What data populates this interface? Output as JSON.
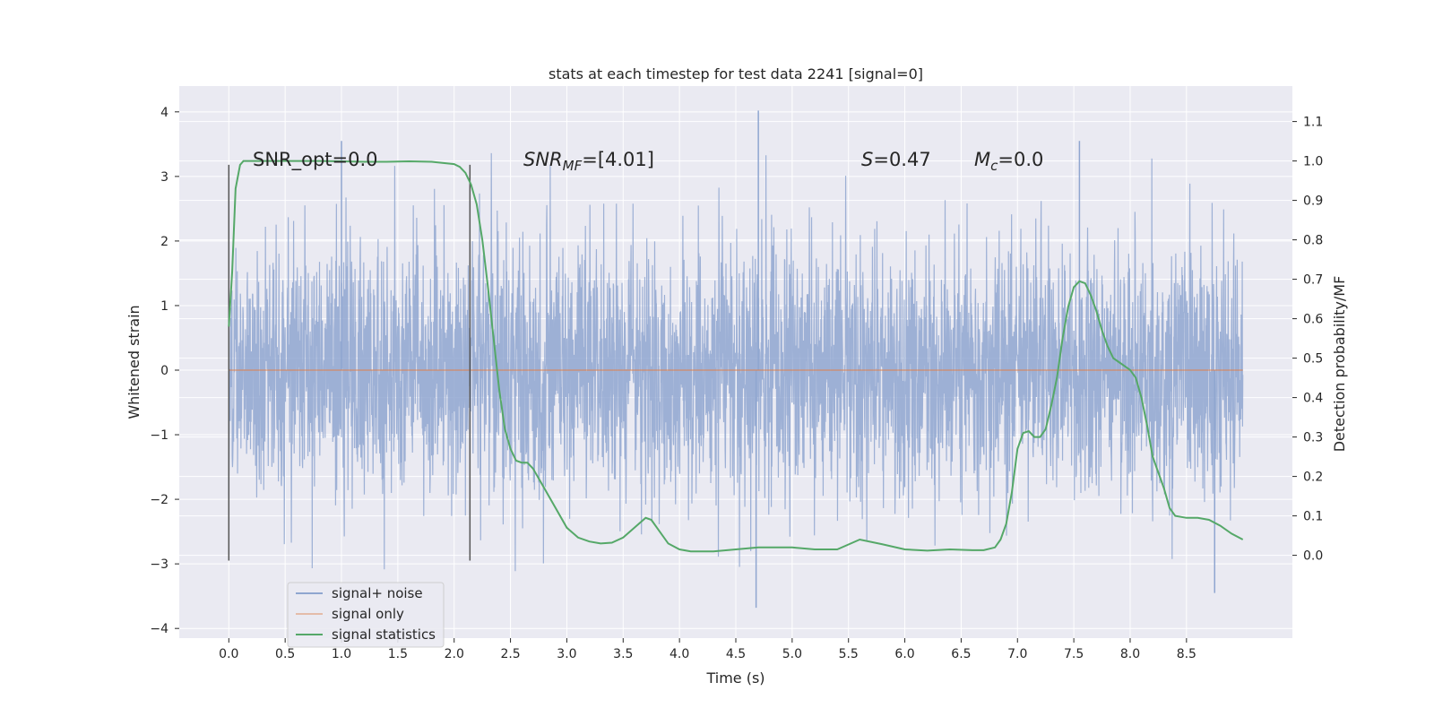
{
  "chart_data": {
    "type": "line",
    "title": "stats at each timestep for test data 2241 [signal=0]",
    "xlabel": "Time (s)",
    "ylabel": "Whitened strain",
    "y2label": "Detection probability/MF",
    "xlim": [
      -0.44,
      9.44
    ],
    "ylim": [
      -4.15,
      4.4
    ],
    "y2lim": [
      -0.21,
      1.19
    ],
    "x_ticks": [
      "0.0",
      "0.5",
      "1.0",
      "1.5",
      "2.0",
      "2.5",
      "3.0",
      "3.5",
      "4.0",
      "4.5",
      "5.0",
      "5.5",
      "6.0",
      "6.5",
      "7.0",
      "7.5",
      "8.0",
      "8.5"
    ],
    "x_tick_values": [
      0.0,
      0.5,
      1.0,
      1.5,
      2.0,
      2.5,
      3.0,
      3.5,
      4.0,
      4.5,
      5.0,
      5.5,
      6.0,
      6.5,
      7.0,
      7.5,
      8.0,
      8.5
    ],
    "y_ticks": [
      "4",
      "3",
      "2",
      "1",
      "0",
      "−1",
      "−2",
      "−3",
      "−4"
    ],
    "y_tick_values": [
      4,
      3,
      2,
      1,
      0,
      -1,
      -2,
      -3,
      -4
    ],
    "y2_ticks": [
      "1.1",
      "1.0",
      "0.9",
      "0.8",
      "0.7",
      "0.6",
      "0.5",
      "0.4",
      "0.3",
      "0.2",
      "0.1",
      "0.0"
    ],
    "y2_tick_values": [
      1.1,
      1.0,
      0.9,
      0.8,
      0.7,
      0.6,
      0.5,
      0.4,
      0.3,
      0.2,
      0.1,
      0.0
    ],
    "grid": true,
    "legend": {
      "placement": "lower-left",
      "entries": [
        "signal+ noise",
        "signal only",
        "signal statistics"
      ]
    },
    "colors": {
      "background": "#eaeaf2",
      "grid": "#ffffff",
      "signal_noise": "#8fa6d0",
      "signal_only": "#dd8452",
      "signal_statistics": "#55a868",
      "markers": "#555555"
    },
    "annotations": {
      "snr_opt": "SNR_opt=0.0",
      "snr_mf_main": "SNR",
      "snr_mf_sub": "MF",
      "snr_mf_value": "=[4.01]",
      "s_italic": "S",
      "s_value": "=0.47",
      "mc_italic": "M",
      "mc_sub": "c",
      "mc_value": "=0.0"
    },
    "vertical_markers": [
      {
        "x": 0.0,
        "y_from": -2.95,
        "y_to": 3.18
      },
      {
        "x": 2.14,
        "y_from": -2.95,
        "y_to": 3.18
      }
    ],
    "series": [
      {
        "name": "signal+ noise",
        "axis": "left",
        "x_range": [
          0.0,
          9.0
        ],
        "approx_envelope": [
          -3.7,
          4.02
        ],
        "notable_peaks": [
          {
            "x": 4.7,
            "y": 4.02
          },
          {
            "x": 1.0,
            "y": 3.55
          },
          {
            "x": 7.55,
            "y": 3.55
          },
          {
            "x": 4.68,
            "y": -3.68
          },
          {
            "x": 8.75,
            "y": -3.45
          }
        ]
      },
      {
        "name": "signal only",
        "axis": "left",
        "x": [
          0.0,
          9.0
        ],
        "values": [
          0.0,
          0.0
        ]
      },
      {
        "name": "signal statistics",
        "axis": "right",
        "x": [
          0.0,
          0.03,
          0.06,
          0.1,
          0.13,
          0.18,
          0.25,
          0.4,
          0.6,
          0.8,
          1.0,
          1.2,
          1.4,
          1.6,
          1.8,
          2.0,
          2.05,
          2.1,
          2.15,
          2.2,
          2.25,
          2.3,
          2.35,
          2.4,
          2.45,
          2.5,
          2.55,
          2.6,
          2.65,
          2.7,
          2.8,
          2.9,
          3.0,
          3.1,
          3.2,
          3.3,
          3.4,
          3.5,
          3.6,
          3.7,
          3.75,
          3.8,
          3.9,
          4.0,
          4.1,
          4.2,
          4.3,
          4.5,
          4.7,
          5.0,
          5.2,
          5.4,
          5.6,
          5.8,
          6.0,
          6.2,
          6.4,
          6.6,
          6.7,
          6.8,
          6.85,
          6.9,
          6.95,
          7.0,
          7.05,
          7.1,
          7.15,
          7.2,
          7.25,
          7.3,
          7.35,
          7.4,
          7.45,
          7.5,
          7.55,
          7.6,
          7.65,
          7.7,
          7.75,
          7.8,
          7.85,
          7.9,
          8.0,
          8.05,
          8.1,
          8.15,
          8.2,
          8.3,
          8.35,
          8.4,
          8.5,
          8.6,
          8.7,
          8.8,
          8.9,
          9.0
        ],
        "values": [
          0.58,
          0.72,
          0.93,
          0.99,
          1.0,
          1.0,
          1.0,
          1.0,
          1.0,
          1.0,
          0.999,
          0.998,
          0.998,
          0.999,
          0.998,
          0.992,
          0.985,
          0.97,
          0.94,
          0.89,
          0.8,
          0.68,
          0.55,
          0.42,
          0.32,
          0.27,
          0.24,
          0.235,
          0.235,
          0.22,
          0.17,
          0.12,
          0.07,
          0.045,
          0.035,
          0.03,
          0.032,
          0.045,
          0.07,
          0.095,
          0.09,
          0.07,
          0.03,
          0.015,
          0.01,
          0.01,
          0.01,
          0.015,
          0.02,
          0.02,
          0.015,
          0.015,
          0.04,
          0.028,
          0.015,
          0.012,
          0.015,
          0.013,
          0.013,
          0.02,
          0.04,
          0.08,
          0.16,
          0.27,
          0.31,
          0.315,
          0.3,
          0.3,
          0.32,
          0.38,
          0.45,
          0.55,
          0.63,
          0.68,
          0.695,
          0.69,
          0.66,
          0.62,
          0.57,
          0.53,
          0.5,
          0.49,
          0.47,
          0.45,
          0.4,
          0.33,
          0.25,
          0.17,
          0.12,
          0.1,
          0.095,
          0.095,
          0.09,
          0.075,
          0.055,
          0.04
        ]
      }
    ]
  }
}
